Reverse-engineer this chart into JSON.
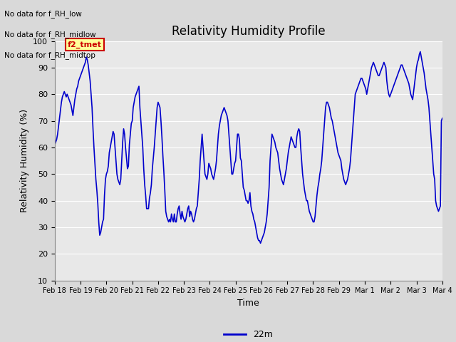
{
  "title": "Relativity Humidity Profile",
  "xlabel": "Time",
  "ylabel": "Relativity Humidity (%)",
  "ylim": [
    10,
    100
  ],
  "yticks": [
    10,
    20,
    30,
    40,
    50,
    60,
    70,
    80,
    90,
    100
  ],
  "line_color": "#0000cc",
  "line_width": 1.2,
  "legend_label": "22m",
  "legend_line_color": "#0000cc",
  "annotations": [
    "No data for f_RH_low",
    "No data for f_RH_midlow",
    "No data for f_RH_midtop"
  ],
  "annotation_box_label": "f2_tmet",
  "annotation_box_color": "#cc0000",
  "annotation_box_bg": "#ffff99",
  "fig_bg_color": "#d9d9d9",
  "plot_bg_color": "#e8e8e8",
  "x_labels": [
    "Feb 18",
    "Feb 19",
    "Feb 20",
    "Feb 21",
    "Feb 22",
    "Feb 23",
    "Feb 24",
    "Feb 25",
    "Feb 26",
    "Feb 27",
    "Feb 28",
    "Feb 29",
    "Mar 1",
    "Mar 2",
    "Mar 3",
    "Mar 4"
  ],
  "total_days": 15,
  "data_y": [
    61,
    62,
    63,
    65,
    68,
    71,
    74,
    77,
    79,
    80,
    81,
    80,
    79,
    80,
    79,
    78,
    77,
    76,
    74,
    72,
    75,
    78,
    80,
    82,
    83,
    85,
    86,
    87,
    88,
    89,
    90,
    91,
    92,
    94,
    93,
    91,
    88,
    85,
    80,
    75,
    67,
    60,
    54,
    48,
    44,
    39,
    32,
    27,
    28,
    30,
    32,
    33,
    42,
    48,
    50,
    51,
    53,
    58,
    60,
    62,
    64,
    66,
    65,
    60,
    55,
    50,
    48,
    47,
    46,
    48,
    55,
    62,
    67,
    65,
    60,
    56,
    52,
    53,
    61,
    65,
    69,
    70,
    75,
    77,
    79,
    80,
    81,
    82,
    83,
    75,
    70,
    65,
    60,
    52,
    46,
    42,
    37,
    37,
    37,
    41,
    43,
    46,
    52,
    56,
    60,
    65,
    70,
    75,
    77,
    76,
    75,
    70,
    64,
    57,
    51,
    44,
    36,
    34,
    33,
    32,
    33,
    32,
    35,
    33,
    32,
    35,
    32,
    32,
    35,
    37,
    38,
    35,
    33,
    36,
    34,
    33,
    32,
    33,
    35,
    37,
    38,
    34,
    36,
    35,
    33,
    32,
    33,
    35,
    37,
    38,
    43,
    48,
    55,
    60,
    65,
    60,
    55,
    50,
    49,
    48,
    50,
    54,
    53,
    52,
    50,
    49,
    48,
    50,
    52,
    55,
    60,
    65,
    68,
    70,
    72,
    73,
    74,
    75,
    74,
    73,
    72,
    70,
    65,
    60,
    55,
    50,
    50,
    52,
    54,
    55,
    60,
    65,
    65,
    63,
    56,
    55,
    50,
    45,
    44,
    42,
    40,
    40,
    39,
    40,
    43,
    38,
    36,
    35,
    33,
    32,
    30,
    28,
    26,
    25,
    25,
    24,
    25,
    26,
    27,
    28,
    30,
    32,
    35,
    40,
    45,
    55,
    60,
    65,
    64,
    63,
    62,
    60,
    59,
    58,
    55,
    52,
    50,
    48,
    47,
    46,
    48,
    50,
    52,
    55,
    58,
    60,
    62,
    64,
    63,
    62,
    61,
    60,
    60,
    64,
    66,
    67,
    66,
    60,
    55,
    50,
    47,
    44,
    42,
    40,
    40,
    38,
    36,
    35,
    34,
    33,
    32,
    32,
    34,
    38,
    42,
    45,
    47,
    50,
    52,
    55,
    60,
    65,
    70,
    75,
    77,
    77,
    76,
    75,
    73,
    71,
    70,
    68,
    66,
    64,
    62,
    60,
    58,
    57,
    56,
    55,
    52,
    50,
    48,
    47,
    46,
    47,
    48,
    50,
    52,
    55,
    60,
    65,
    70,
    75,
    80,
    81,
    82,
    83,
    84,
    85,
    86,
    86,
    85,
    84,
    83,
    82,
    80,
    82,
    84,
    86,
    88,
    90,
    91,
    92,
    91,
    90,
    89,
    88,
    87,
    87,
    88,
    89,
    90,
    91,
    92,
    91,
    90,
    85,
    82,
    80,
    79,
    80,
    81,
    82,
    83,
    84,
    85,
    86,
    87,
    88,
    89,
    90,
    91,
    91,
    90,
    89,
    88,
    87,
    86,
    85,
    84,
    82,
    80,
    79,
    78,
    81,
    84,
    87,
    90,
    92,
    93,
    95,
    96,
    94,
    92,
    90,
    88,
    85,
    82,
    80,
    78,
    75,
    70,
    65,
    60,
    55,
    50,
    48,
    40,
    38,
    37,
    36,
    37,
    38,
    70,
    71
  ]
}
